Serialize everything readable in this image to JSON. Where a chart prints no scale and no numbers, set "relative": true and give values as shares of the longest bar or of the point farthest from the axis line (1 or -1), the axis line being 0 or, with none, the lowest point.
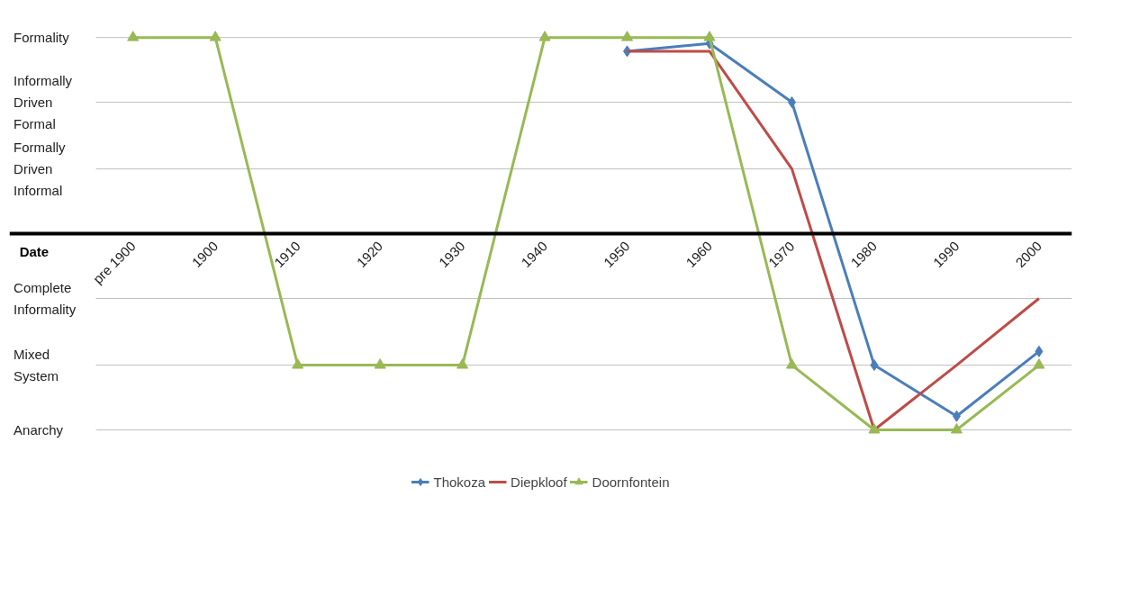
{
  "chart_data": {
    "type": "line",
    "xlabel": "Date",
    "relative": true,
    "categories": [
      "pre 1900",
      "1900",
      "1910",
      "1920",
      "1930",
      "1940",
      "1950",
      "1960",
      "1970",
      "1980",
      "1990",
      "2000"
    ],
    "ref_lines": [
      {
        "axis": "y",
        "value": 1,
        "label": "Formality",
        "color": "#bfbfbf"
      },
      {
        "axis": "y",
        "value": 0.67,
        "label": "Informally Driven Formal",
        "color": "#bfbfbf"
      },
      {
        "axis": "y",
        "value": 0.33,
        "label": "Formally Driven Informal",
        "color": "#bfbfbf"
      },
      {
        "axis": "y",
        "value": -0.33,
        "label": "Complete Informality",
        "color": "#bfbfbf"
      },
      {
        "axis": "y",
        "value": -0.67,
        "label": "Mixed System",
        "color": "#bfbfbf"
      },
      {
        "axis": "y",
        "value": -1,
        "label": "Anarchy",
        "color": "#bfbfbf"
      }
    ],
    "legend": "bottom",
    "line_style": "solid",
    "series": [
      {
        "name": "Thokoza",
        "color": "#4a7ebb",
        "marker": "diamond",
        "values": [
          null,
          null,
          null,
          null,
          null,
          null,
          0.93,
          0.97,
          0.67,
          -0.67,
          -0.93,
          -0.6
        ]
      },
      {
        "name": "Diepkloof",
        "color": "#be4b48",
        "marker": "none",
        "values": [
          null,
          null,
          null,
          null,
          null,
          null,
          0.93,
          0.93,
          0.33,
          -1,
          -0.67,
          -0.33
        ]
      },
      {
        "name": "Doornfontein",
        "color": "#98b954",
        "marker": "triangle",
        "values": [
          1,
          1,
          -0.67,
          -0.67,
          -0.67,
          1,
          1,
          1,
          -0.67,
          -1,
          -1,
          -0.67
        ]
      }
    ]
  }
}
